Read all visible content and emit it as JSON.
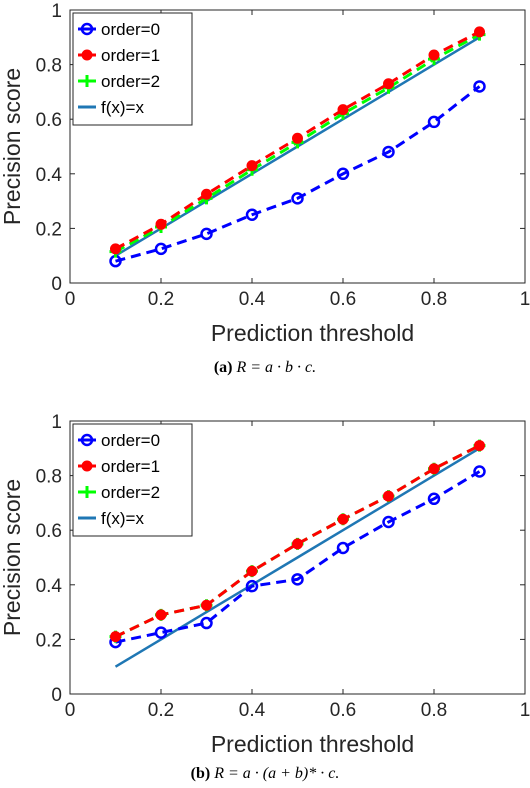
{
  "chart_data": [
    {
      "type": "line",
      "caption_label": "(a)",
      "caption_formula": "R = a · b · c.",
      "xlabel": "Prediction threshold",
      "ylabel": "Precision score",
      "xlim": [
        0,
        1
      ],
      "ylim": [
        0,
        1
      ],
      "xticks": [
        "0",
        "0.2",
        "0.4",
        "0.6",
        "0.8",
        "1"
      ],
      "yticks": [
        "0",
        "0.2",
        "0.4",
        "0.6",
        "0.8",
        "1"
      ],
      "legend_position": "top-left",
      "grid": false,
      "x": [
        0.1,
        0.2,
        0.3,
        0.4,
        0.5,
        0.6,
        0.7,
        0.8,
        0.9
      ],
      "series": [
        {
          "name": "order=0",
          "color": "#0000ff",
          "style": "dashed",
          "marker": "circle",
          "values": [
            0.08,
            0.125,
            0.18,
            0.25,
            0.31,
            0.4,
            0.48,
            0.59,
            0.72
          ]
        },
        {
          "name": "order=1",
          "color": "#ff0000",
          "style": "dashed",
          "marker": "filled-circle",
          "values": [
            0.125,
            0.215,
            0.325,
            0.43,
            0.53,
            0.635,
            0.73,
            0.835,
            0.92
          ]
        },
        {
          "name": "order=2",
          "color": "#00ff00",
          "style": "dashed",
          "marker": "plus",
          "values": [
            0.115,
            0.205,
            0.31,
            0.415,
            0.515,
            0.62,
            0.715,
            0.82,
            0.91
          ]
        },
        {
          "name": "f(x)=x",
          "color": "#1f77b4",
          "style": "solid",
          "marker": "none",
          "values": [
            0.1,
            0.2,
            0.3,
            0.4,
            0.5,
            0.6,
            0.7,
            0.8,
            0.9
          ]
        }
      ]
    },
    {
      "type": "line",
      "caption_label": "(b)",
      "caption_formula": "R = a · (a + b)* · c.",
      "xlabel": "Prediction threshold",
      "ylabel": "Precision score",
      "xlim": [
        0,
        1
      ],
      "ylim": [
        0,
        1
      ],
      "xticks": [
        "0",
        "0.2",
        "0.4",
        "0.6",
        "0.8",
        "1"
      ],
      "yticks": [
        "0",
        "0.2",
        "0.4",
        "0.6",
        "0.8",
        "1"
      ],
      "legend_position": "top-left",
      "grid": false,
      "x": [
        0.1,
        0.2,
        0.3,
        0.4,
        0.5,
        0.6,
        0.7,
        0.8,
        0.9
      ],
      "series": [
        {
          "name": "order=0",
          "color": "#0000ff",
          "style": "dashed",
          "marker": "circle",
          "values": [
            0.19,
            0.225,
            0.26,
            0.395,
            0.42,
            0.535,
            0.63,
            0.715,
            0.815
          ]
        },
        {
          "name": "order=1",
          "color": "#ff0000",
          "style": "dashed",
          "marker": "filled-circle",
          "values": [
            0.21,
            0.29,
            0.325,
            0.45,
            0.55,
            0.64,
            0.725,
            0.825,
            0.91
          ]
        },
        {
          "name": "order=2",
          "color": "#00ff00",
          "style": "dashed",
          "marker": "plus",
          "values": [
            0.21,
            0.29,
            0.325,
            0.45,
            0.55,
            0.64,
            0.725,
            0.825,
            0.91
          ]
        },
        {
          "name": "f(x)=x",
          "color": "#1f77b4",
          "style": "solid",
          "marker": "none",
          "values": [
            0.1,
            0.2,
            0.3,
            0.4,
            0.5,
            0.6,
            0.7,
            0.8,
            0.9
          ]
        }
      ]
    }
  ]
}
